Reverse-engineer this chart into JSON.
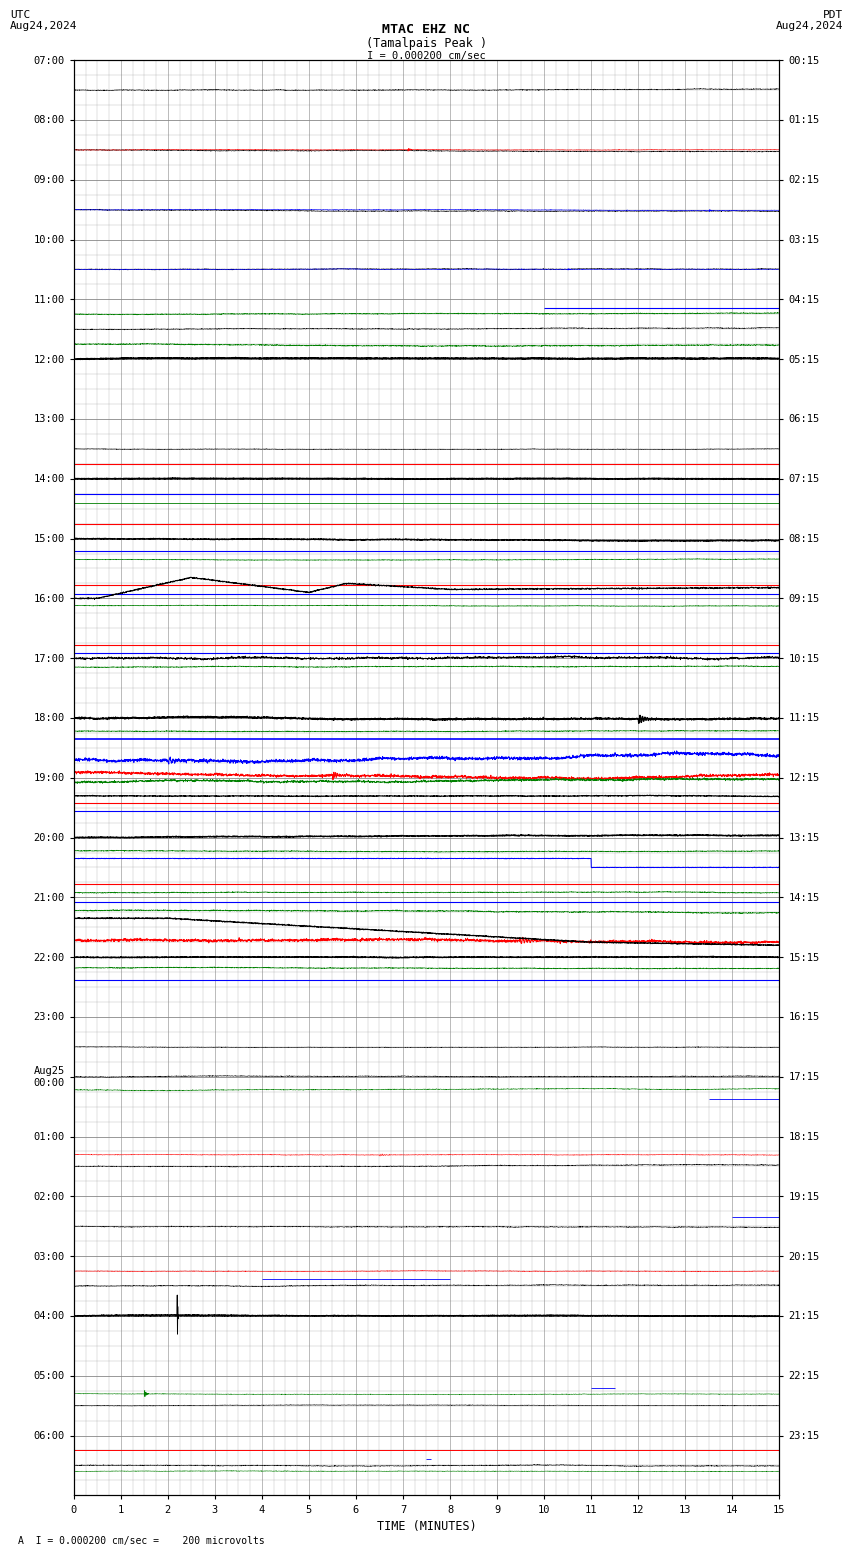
{
  "title_line1": "MTAC EHZ NC",
  "title_line2": "(Tamalpais Peak )",
  "scale_label": "I = 0.000200 cm/sec",
  "left_header": "UTC\nAug24,2024",
  "right_header": "PDT\nAug24,2024",
  "footer_label": "A  I = 0.000200 cm/sec =    200 microvolts",
  "xlabel": "TIME (MINUTES)",
  "left_times": [
    "07:00",
    "08:00",
    "09:00",
    "10:00",
    "11:00",
    "12:00",
    "13:00",
    "14:00",
    "15:00",
    "16:00",
    "17:00",
    "18:00",
    "19:00",
    "20:00",
    "21:00",
    "22:00",
    "23:00",
    "Aug25\n00:00",
    "01:00",
    "02:00",
    "03:00",
    "04:00",
    "05:00",
    "06:00"
  ],
  "right_times": [
    "00:15",
    "01:15",
    "02:15",
    "03:15",
    "04:15",
    "05:15",
    "06:15",
    "07:15",
    "08:15",
    "09:15",
    "10:15",
    "11:15",
    "12:15",
    "13:15",
    "14:15",
    "15:15",
    "16:15",
    "17:15",
    "18:15",
    "19:15",
    "20:15",
    "21:15",
    "22:15",
    "23:15"
  ],
  "n_rows": 24,
  "n_minutes": 15,
  "bg_color": "#ffffff",
  "grid_color": "#888888",
  "trace_color_black": "#000000",
  "trace_color_red": "#ff0000",
  "trace_color_blue": "#0000ff",
  "trace_color_green": "#008000",
  "fig_width": 8.5,
  "fig_height": 15.84
}
